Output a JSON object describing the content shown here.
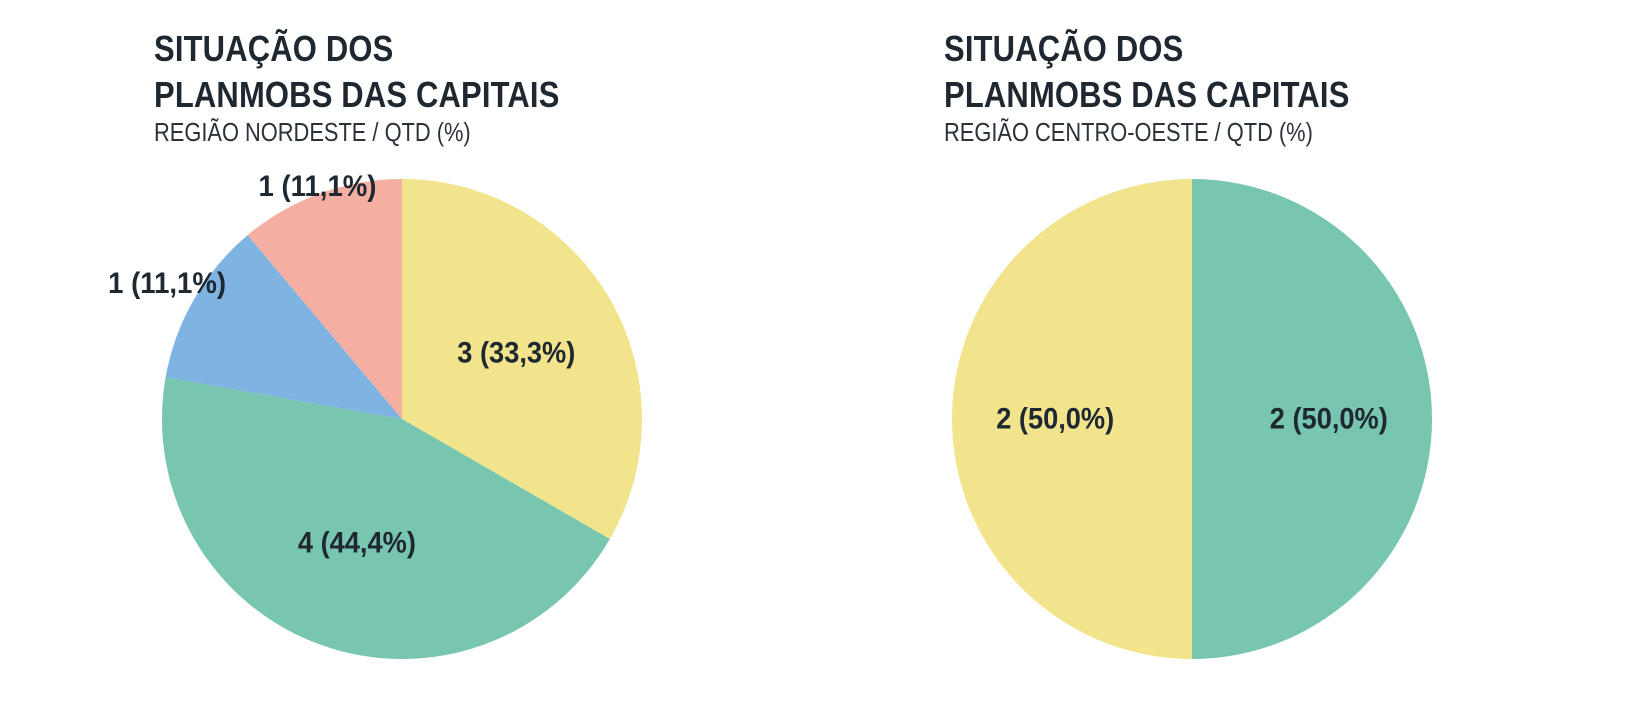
{
  "colors": {
    "yellow": "#f1e48c",
    "green": "#78c5b0",
    "blue": "#7fb3e2",
    "salmon": "#f4afa2",
    "text": "#1f2730"
  },
  "chart_data": [
    {
      "type": "pie",
      "title_line1": "SITUAÇÃO DOS",
      "title_line2": "PLANMOBS DAS CAPITAIS",
      "subtitle": "REGIÃO NORDESTE / QTD (%)",
      "slices": [
        {
          "value": 3,
          "percent": 33.3,
          "label": "3 (33,3%)",
          "color": "#f1e48c"
        },
        {
          "value": 4,
          "percent": 44.4,
          "label": "4 (44,4%)",
          "color": "#78c5b0"
        },
        {
          "value": 1,
          "percent": 11.1,
          "label": "1 (11,1%)",
          "color": "#7fb3e2"
        },
        {
          "value": 1,
          "percent": 11.1,
          "label": "1 (11,1%)",
          "color": "#f4afa2"
        }
      ]
    },
    {
      "type": "pie",
      "title_line1": "SITUAÇÃO DOS",
      "title_line2": "PLANMOBS DAS CAPITAIS",
      "subtitle": "REGIÃO CENTRO-OESTE / QTD (%)",
      "slices": [
        {
          "value": 2,
          "percent": 50.0,
          "label": "2 (50,0%)",
          "color": "#78c5b0"
        },
        {
          "value": 2,
          "percent": 50.0,
          "label": "2 (50,0%)",
          "color": "#f1e48c"
        }
      ]
    }
  ]
}
